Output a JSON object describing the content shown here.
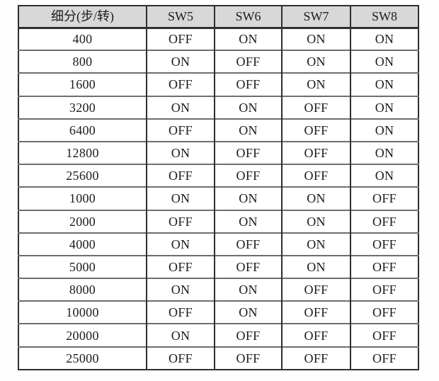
{
  "table": {
    "name": "microstep-dip-switch-table",
    "headers": [
      "细分(步/转)",
      "SW5",
      "SW6",
      "SW7",
      "SW8"
    ],
    "rows": [
      [
        "400",
        "OFF",
        "ON",
        "ON",
        "ON"
      ],
      [
        "800",
        "ON",
        "OFF",
        "ON",
        "ON"
      ],
      [
        "1600",
        "OFF",
        "OFF",
        "ON",
        "ON"
      ],
      [
        "3200",
        "ON",
        "ON",
        "OFF",
        "ON"
      ],
      [
        "6400",
        "OFF",
        "ON",
        "OFF",
        "ON"
      ],
      [
        "12800",
        "ON",
        "OFF",
        "OFF",
        "ON"
      ],
      [
        "25600",
        "OFF",
        "OFF",
        "OFF",
        "ON"
      ],
      [
        "1000",
        "ON",
        "ON",
        "ON",
        "OFF"
      ],
      [
        "2000",
        "OFF",
        "ON",
        "ON",
        "OFF"
      ],
      [
        "4000",
        "ON",
        "OFF",
        "ON",
        "OFF"
      ],
      [
        "5000",
        "OFF",
        "OFF",
        "ON",
        "OFF"
      ],
      [
        "8000",
        "ON",
        "ON",
        "OFF",
        "OFF"
      ],
      [
        "10000",
        "OFF",
        "ON",
        "OFF",
        "OFF"
      ],
      [
        "20000",
        "ON",
        "OFF",
        "OFF",
        "OFF"
      ],
      [
        "25000",
        "OFF",
        "OFF",
        "OFF",
        "OFF"
      ]
    ]
  },
  "colors": {
    "header_background": "#d8d8d8",
    "outer_border": "#2f2f2f",
    "row_separator": "#6e6e6e",
    "text": "#1c1c1c",
    "page_background": "#fefefe"
  }
}
